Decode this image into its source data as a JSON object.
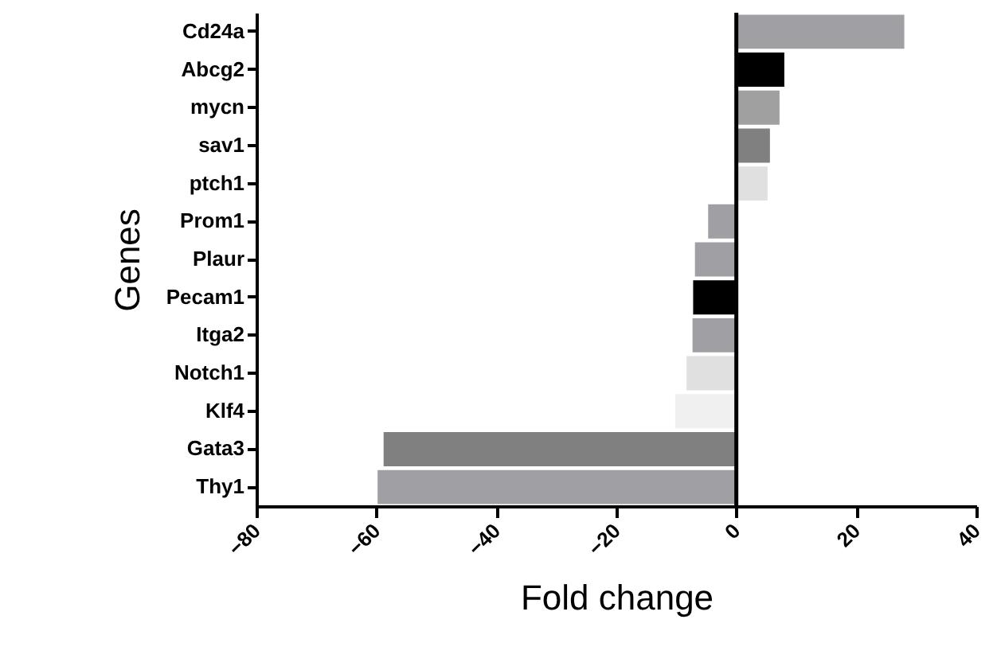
{
  "chart_data": {
    "type": "bar",
    "orientation": "horizontal",
    "xlabel": "Fold change",
    "ylabel": "Genes",
    "categories": [
      "Cd24a",
      "Abcg2",
      "mycn",
      "sav1",
      "ptch1",
      "Prom1",
      "Plaur",
      "Pecam1",
      "Itga2",
      "Notch1",
      "Klf4",
      "Gata3",
      "Thy1"
    ],
    "values": [
      28,
      8,
      7.2,
      5.6,
      5.2,
      -4.7,
      -6.9,
      -7.2,
      -7.3,
      -8.3,
      -10.2,
      -58.8,
      -59.8
    ],
    "colors": [
      "#a0a0a4",
      "#000000",
      "#a0a0a0",
      "#808080",
      "#e0e0e0",
      "#a0a0a4",
      "#a0a0a4",
      "#000000",
      "#a0a0a4",
      "#e0e0e0",
      "#f0f0f0",
      "#808080",
      "#a0a0a4"
    ],
    "xlim": [
      -80,
      40
    ],
    "xticks": [
      -80,
      -60,
      -40,
      -20,
      0,
      20,
      40
    ],
    "ref_lines": [
      {
        "axis": "x",
        "value": 0,
        "color": "#000000"
      }
    ],
    "grid": false
  }
}
